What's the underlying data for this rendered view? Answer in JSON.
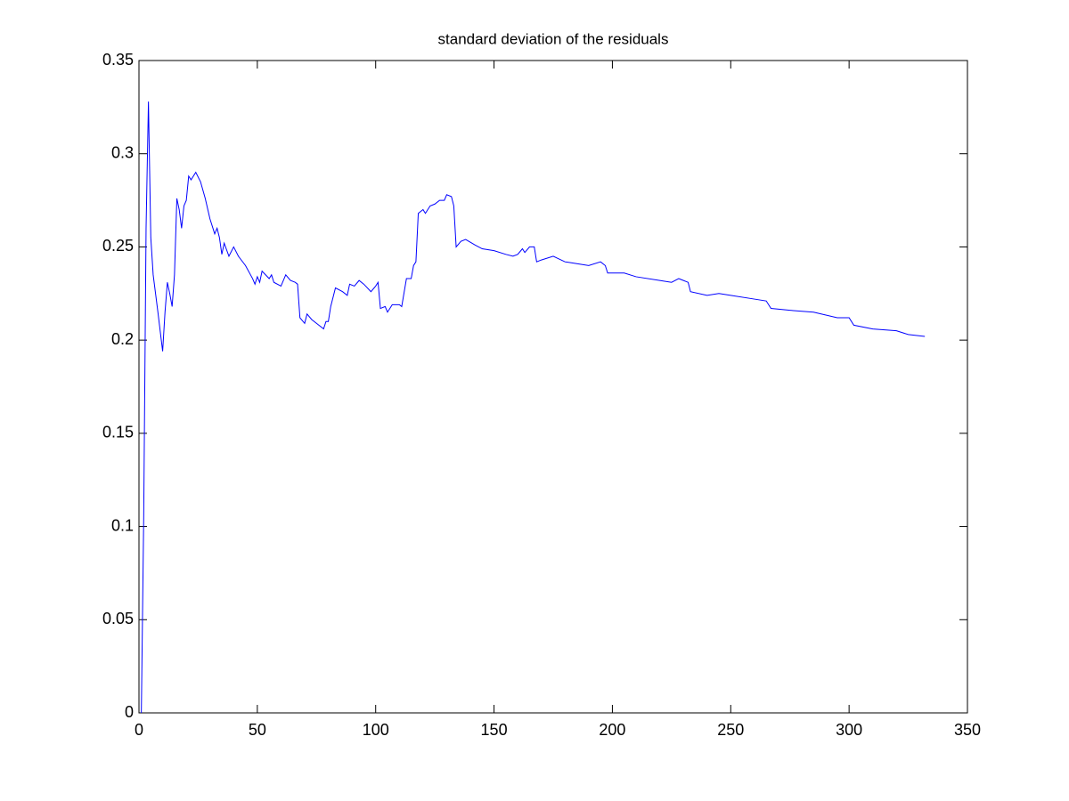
{
  "chart_data": {
    "type": "line",
    "title": "standard deviation of the residuals",
    "series": [
      {
        "color": "#0000ff",
        "x": [
          1,
          2,
          3,
          4,
          5,
          6,
          8,
          10,
          11,
          12,
          13,
          14,
          15,
          16,
          17,
          18,
          19,
          20,
          21,
          22,
          24,
          26,
          28,
          30,
          32,
          33,
          34,
          35,
          36,
          38,
          40,
          42,
          45,
          48,
          49,
          50,
          51,
          52,
          55,
          56,
          57,
          60,
          62,
          64,
          66,
          67,
          68,
          70,
          71,
          73,
          76,
          78,
          79,
          80,
          81,
          83,
          86,
          88,
          89,
          91,
          93,
          95,
          98,
          100,
          101,
          102,
          104,
          105,
          107,
          110,
          111,
          113,
          115,
          116,
          117,
          118,
          120,
          121,
          123,
          125,
          127,
          129,
          130,
          132,
          133,
          134,
          136,
          138,
          142,
          145,
          150,
          155,
          158,
          160,
          162,
          163,
          165,
          167,
          168,
          170,
          175,
          180,
          185,
          190,
          195,
          197,
          198,
          205,
          210,
          220,
          225,
          228,
          230,
          232,
          233,
          240,
          245,
          250,
          260,
          265,
          267,
          275,
          285,
          295,
          300,
          302,
          310,
          320,
          325,
          332
        ],
        "values": [
          0,
          0.105,
          0.26,
          0.328,
          0.255,
          0.235,
          0.215,
          0.194,
          0.215,
          0.231,
          0.225,
          0.218,
          0.235,
          0.276,
          0.27,
          0.26,
          0.272,
          0.275,
          0.288,
          0.286,
          0.29,
          0.285,
          0.276,
          0.265,
          0.257,
          0.26,
          0.255,
          0.246,
          0.252,
          0.245,
          0.25,
          0.245,
          0.24,
          0.233,
          0.23,
          0.234,
          0.231,
          0.237,
          0.233,
          0.235,
          0.231,
          0.229,
          0.235,
          0.232,
          0.231,
          0.23,
          0.212,
          0.209,
          0.214,
          0.211,
          0.208,
          0.206,
          0.21,
          0.21,
          0.218,
          0.228,
          0.226,
          0.224,
          0.23,
          0.229,
          0.232,
          0.23,
          0.226,
          0.229,
          0.231,
          0.217,
          0.218,
          0.215,
          0.219,
          0.219,
          0.218,
          0.233,
          0.233,
          0.24,
          0.242,
          0.268,
          0.27,
          0.268,
          0.272,
          0.273,
          0.275,
          0.275,
          0.278,
          0.277,
          0.272,
          0.25,
          0.253,
          0.254,
          0.251,
          0.249,
          0.248,
          0.246,
          0.245,
          0.246,
          0.249,
          0.247,
          0.25,
          0.25,
          0.242,
          0.243,
          0.245,
          0.242,
          0.241,
          0.24,
          0.242,
          0.24,
          0.236,
          0.236,
          0.234,
          0.232,
          0.231,
          0.233,
          0.232,
          0.231,
          0.226,
          0.224,
          0.225,
          0.224,
          0.222,
          0.221,
          0.217,
          0.216,
          0.215,
          0.212,
          0.212,
          0.208,
          0.206,
          0.205,
          0.203,
          0.202
        ]
      }
    ],
    "xlim": [
      0,
      350
    ],
    "xticks": [
      0,
      50,
      100,
      150,
      200,
      250,
      300,
      350
    ],
    "ylim": [
      0,
      0.35
    ],
    "yticks": [
      0,
      0.05,
      0.1,
      0.15,
      0.2,
      0.25,
      0.3,
      0.35
    ],
    "grid": false
  }
}
